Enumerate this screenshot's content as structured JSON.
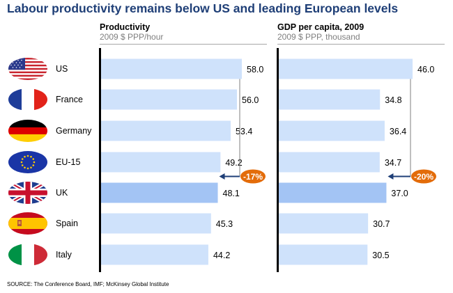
{
  "title": "Labour productivity remains below US and leading European levels",
  "source": "SOURCE: The Conference Board, IMF; McKinsey Global Institute",
  "countries": [
    {
      "name": "US",
      "flag": "us-flag-icon"
    },
    {
      "name": "France",
      "flag": "france-flag-icon"
    },
    {
      "name": "Germany",
      "flag": "germany-flag-icon"
    },
    {
      "name": "EU-15",
      "flag": "eu-flag-icon"
    },
    {
      "name": "UK",
      "flag": "uk-flag-icon"
    },
    {
      "name": "Spain",
      "flag": "spain-flag-icon"
    },
    {
      "name": "Italy",
      "flag": "italy-flag-icon"
    }
  ],
  "colors": {
    "bar": "#cfe2fb",
    "highlight": "#a3c4f4",
    "badge": "#e36c0a",
    "title": "#1f3f77",
    "arrow": "#1f3f77"
  },
  "chart_data": [
    {
      "type": "bar",
      "title": "Productivity",
      "subtitle": "2009 $ PPP/hour",
      "categories": [
        "US",
        "France",
        "Germany",
        "EU-15",
        "UK",
        "Spain",
        "Italy"
      ],
      "values": [
        58.0,
        56.0,
        53.4,
        49.2,
        48.1,
        45.3,
        44.2
      ],
      "labels": [
        "58.0",
        "56.0",
        "53.4",
        "49.2",
        "48.1",
        "45.3",
        "44.2"
      ],
      "highlight": "UK",
      "annotation": {
        "text": "-17%",
        "from": "US",
        "to": "UK"
      }
    },
    {
      "type": "bar",
      "title": "GDP per capita, 2009",
      "subtitle": "2009 $ PPP, thousand",
      "categories": [
        "US",
        "France",
        "Germany",
        "EU-15",
        "UK",
        "Spain",
        "Italy"
      ],
      "values": [
        46.0,
        34.8,
        36.4,
        34.7,
        37.0,
        30.7,
        30.5
      ],
      "labels": [
        "46.0",
        "34.8",
        "36.4",
        "34.7",
        "37.0",
        "30.7",
        "30.5"
      ],
      "highlight": "UK",
      "annotation": {
        "text": "-20%",
        "from": "US",
        "to": "UK"
      }
    }
  ]
}
